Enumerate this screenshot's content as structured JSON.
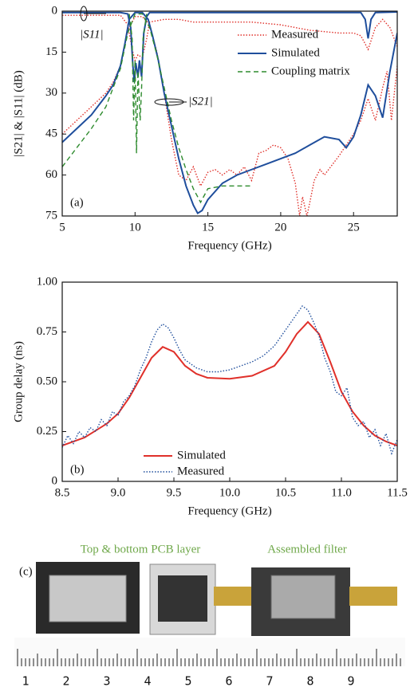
{
  "chart_data": [
    {
      "type": "line",
      "xlabel": "Frequency (GHz)",
      "ylabel": "|S21| & |S11| (dB)",
      "xlim": [
        5,
        28
      ],
      "xticks": [
        5,
        10,
        15,
        20,
        25
      ],
      "ylim": [
        0,
        75
      ],
      "yticks": [
        0,
        15,
        30,
        45,
        60,
        75
      ],
      "y_inverted": true,
      "legend": "upper right",
      "panel_label": "(a)",
      "annotations": [
        "|S11|",
        "|S21|"
      ],
      "series": [
        {
          "name": "Measured",
          "color": "#e0302a",
          "line_style": "dotted",
          "s21": {
            "x": [
              5,
              6,
              7,
              8,
              8.5,
              9,
              9.5,
              10,
              10.5,
              11,
              11.5,
              12,
              12.5,
              13,
              13.5,
              14,
              14.5,
              15,
              15.5,
              16,
              16.5,
              17,
              17.5,
              18,
              18.5,
              19,
              19.5,
              20,
              20.5,
              21,
              21.3,
              21.5,
              21.8,
              22,
              22.3,
              22.7,
              23,
              24,
              25,
              25.5,
              26,
              26.5,
              27,
              27.3,
              27.6,
              28
            ],
            "values": [
              45,
              40,
              35,
              30,
              26,
              20,
              7,
              2,
              2,
              5,
              15,
              30,
              47,
              60,
              62,
              57,
              64,
              59,
              58,
              60,
              58,
              60,
              57,
              62,
              52,
              51,
              49,
              50,
              54,
              63,
              75,
              68,
              75,
              70,
              62,
              58,
              60,
              53,
              45,
              40,
              32,
              40,
              28,
              22,
              40,
              20
            ]
          },
          "s11": {
            "x": [
              5,
              9,
              9.5,
              9.8,
              10,
              10.2,
              10.5,
              10.8,
              11,
              12,
              13,
              14,
              16,
              18,
              20,
              22,
              24,
              25,
              25.5,
              26,
              26.5,
              27,
              27.5,
              28
            ],
            "values": [
              1.5,
              1.5,
              5,
              14,
              18,
              16,
              17,
              10,
              4,
              3,
              3,
              4,
              4,
              4,
              5,
              7,
              8,
              8,
              9,
              14,
              6,
              3,
              6,
              13
            ]
          }
        },
        {
          "name": "Simulated",
          "color": "#1f4e9c",
          "line_style": "solid",
          "s21": {
            "x": [
              5,
              6,
              7,
              8,
              8.5,
              9,
              9.3,
              9.6,
              10,
              10.5,
              10.9,
              11.2,
              11.6,
              12,
              12.5,
              13,
              13.5,
              14,
              14.3,
              14.6,
              15,
              16,
              17,
              18,
              19,
              20,
              21,
              22,
              23,
              24,
              24.5,
              25,
              25.5,
              26,
              26.5,
              27,
              27.5,
              28
            ],
            "values": [
              48,
              43,
              38,
              31,
              27,
              20,
              12,
              3,
              0.5,
              0.5,
              3,
              9,
              18,
              30,
              42,
              54,
              64,
              71,
              74,
              73,
              69,
              63,
              60,
              58,
              56,
              54,
              52,
              49,
              46,
              47,
              50,
              46,
              38,
              27,
              31,
              39,
              22,
              8
            ]
          },
          "s11": {
            "x": [
              5,
              9,
              9.5,
              9.7,
              9.85,
              9.95,
              10.05,
              10.2,
              10.3,
              10.45,
              10.6,
              10.8,
              11,
              25.5,
              25.8,
              26,
              26.2,
              26.5,
              28
            ],
            "values": [
              0.5,
              0.5,
              1,
              6,
              20,
              26,
              19,
              24,
              18,
              24,
              8,
              2,
              0.5,
              0.5,
              3,
              10,
              3,
              0.5,
              0.3
            ]
          }
        },
        {
          "name": "Coupling matrix",
          "color": "#2e8b2e",
          "line_style": "dashed",
          "s21": {
            "x": [
              5,
              6,
              7,
              8,
              9,
              9.5,
              10,
              10.5,
              11,
              11.5,
              12,
              12.5,
              13,
              13.5,
              14,
              14.5,
              15,
              16,
              17,
              18
            ],
            "values": [
              57,
              50,
              43,
              35,
              21,
              8,
              1,
              1,
              6,
              16,
              28,
              40,
              50,
              58,
              65,
              70,
              65,
              64,
              64,
              64
            ]
          },
          "s11": {
            "x": [
              9.6,
              9.8,
              9.9,
              10,
              10.1,
              10.2,
              10.35,
              10.45,
              10.55,
              10.8
            ],
            "values": [
              1,
              10,
              40,
              18,
              52,
              22,
              40,
              28,
              10,
              1
            ]
          }
        }
      ]
    },
    {
      "type": "line",
      "xlabel": "Frequency (GHz)",
      "ylabel": "Group delay (ns)",
      "xlim": [
        8.5,
        11.5
      ],
      "xticks": [
        8.5,
        {
          "value": 9,
          "label": "9.0"
        },
        9.5,
        {
          "value": 10,
          "label": "10.0"
        },
        10.5,
        {
          "value": 11,
          "label": "11.0"
        },
        11.5
      ],
      "ylim": [
        0,
        1
      ],
      "yticks": [
        0,
        0.25,
        {
          "value": 0.5,
          "label": "0.50"
        },
        0.75,
        {
          "value": 1,
          "label": "1.00"
        }
      ],
      "y_inverted": false,
      "legend": "lower left",
      "panel_label": "(b)",
      "series": [
        {
          "name": "Simulated",
          "color": "#e0302a",
          "line_style": "solid",
          "x": [
            8.5,
            8.7,
            8.9,
            9,
            9.1,
            9.2,
            9.3,
            9.4,
            9.5,
            9.6,
            9.7,
            9.8,
            10,
            10.2,
            10.4,
            10.5,
            10.6,
            10.7,
            10.8,
            10.9,
            11,
            11.1,
            11.2,
            11.3,
            11.4,
            11.5
          ],
          "values": [
            0.18,
            0.22,
            0.29,
            0.34,
            0.42,
            0.52,
            0.62,
            0.675,
            0.65,
            0.58,
            0.54,
            0.52,
            0.515,
            0.53,
            0.58,
            0.65,
            0.74,
            0.8,
            0.74,
            0.6,
            0.45,
            0.35,
            0.28,
            0.23,
            0.2,
            0.18
          ]
        },
        {
          "name": "Measured",
          "color": "#1f4e9c",
          "line_style": "dotted",
          "x": [
            8.5,
            8.55,
            8.6,
            8.65,
            8.7,
            8.75,
            8.8,
            8.85,
            8.9,
            8.95,
            9,
            9.05,
            9.1,
            9.15,
            9.2,
            9.25,
            9.3,
            9.35,
            9.4,
            9.45,
            9.5,
            9.55,
            9.6,
            9.7,
            9.8,
            9.9,
            10,
            10.1,
            10.2,
            10.3,
            10.4,
            10.5,
            10.6,
            10.65,
            10.7,
            10.75,
            10.8,
            10.85,
            10.9,
            10.95,
            11,
            11.05,
            11.1,
            11.15,
            11.2,
            11.25,
            11.3,
            11.35,
            11.4,
            11.45,
            11.5
          ],
          "values": [
            0.17,
            0.23,
            0.19,
            0.25,
            0.22,
            0.27,
            0.25,
            0.31,
            0.28,
            0.35,
            0.33,
            0.4,
            0.43,
            0.48,
            0.56,
            0.62,
            0.7,
            0.76,
            0.79,
            0.77,
            0.72,
            0.66,
            0.61,
            0.57,
            0.55,
            0.55,
            0.56,
            0.58,
            0.6,
            0.63,
            0.68,
            0.76,
            0.84,
            0.88,
            0.86,
            0.8,
            0.73,
            0.62,
            0.55,
            0.45,
            0.43,
            0.47,
            0.32,
            0.28,
            0.3,
            0.22,
            0.26,
            0.18,
            0.24,
            0.14,
            0.21
          ]
        }
      ]
    }
  ],
  "photo": {
    "panel_label": "(c)",
    "captions": [
      "Top & bottom PCB layer",
      "Assembled filter"
    ],
    "ruler_labels": [
      "1",
      "2",
      "3",
      "4",
      "5",
      "6",
      "7",
      "8",
      "9"
    ]
  }
}
